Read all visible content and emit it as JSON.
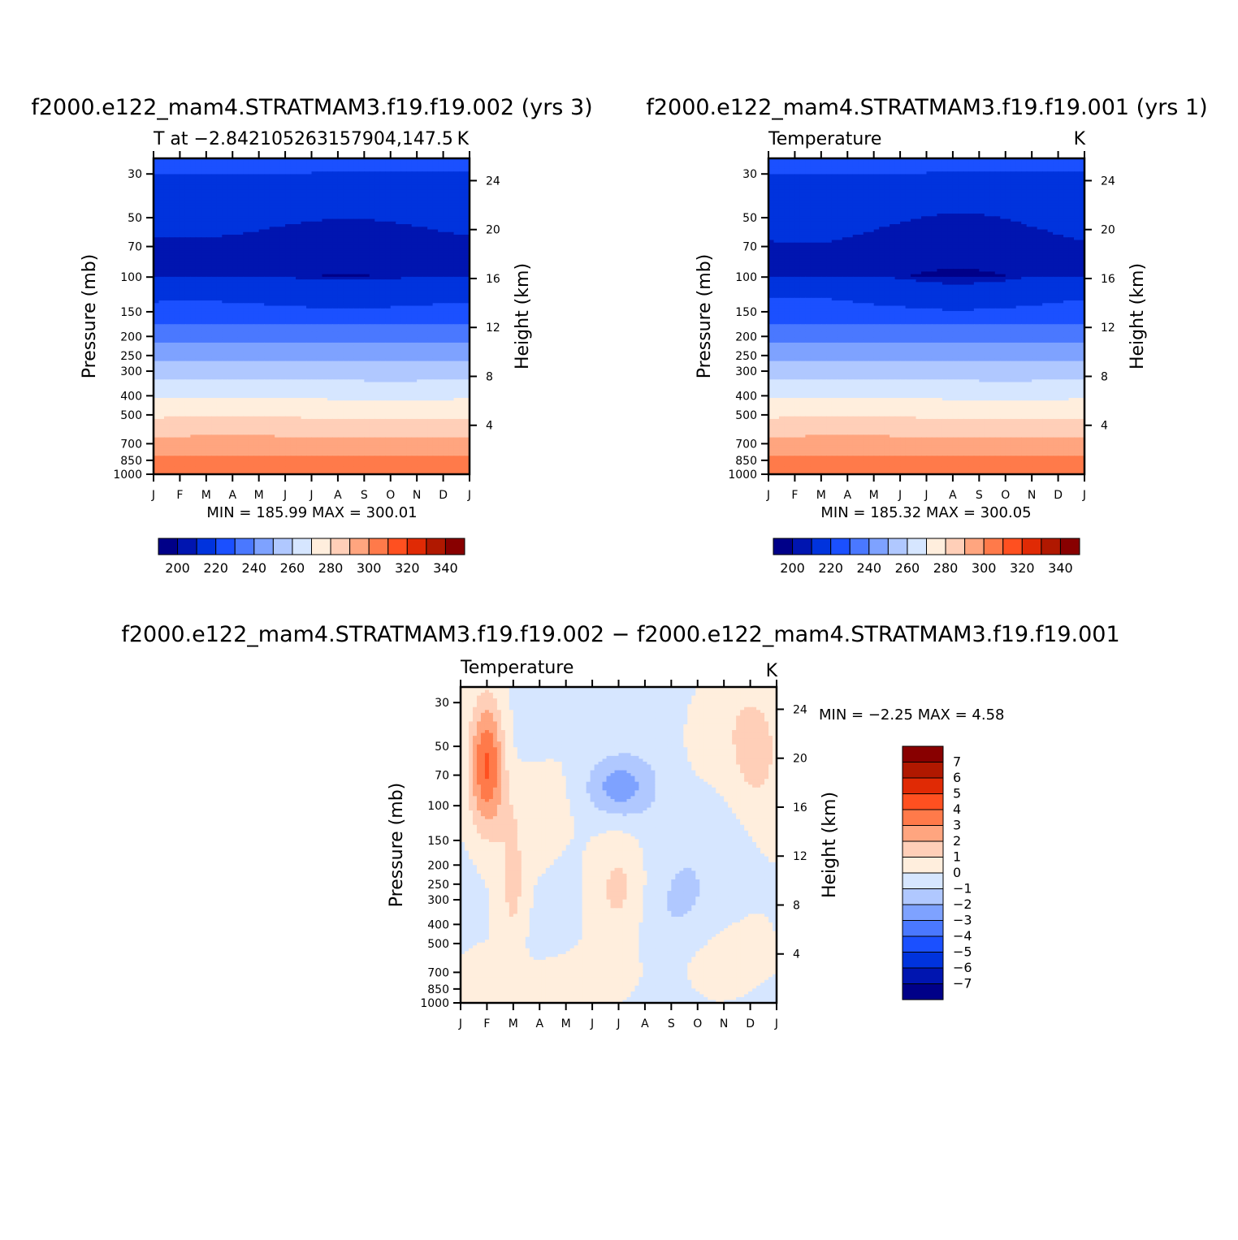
{
  "panels": [
    {
      "run_title": "f2000.e122_mam4.STRATMAM3.f19.f19.002  (yrs  3)",
      "left_title": "T  at  −2.842105263157904,147.5",
      "units": "K",
      "minmax": "MIN  =   185.99  MAX  =   300.01"
    },
    {
      "run_title": "f2000.e122_mam4.STRATMAM3.f19.f19.001  (yrs  1)",
      "left_title": "Temperature",
      "units": "K",
      "minmax": "MIN  =   185.32  MAX  =   300.05"
    },
    {
      "run_title": "f2000.e122_mam4.STRATMAM3.f19.f19.002  −  f2000.e122_mam4.STRATMAM3.f19.f19.001",
      "left_title": "Temperature",
      "units": "K",
      "minmax": "MIN  =   −2.25  MAX  =     4.58"
    }
  ],
  "chart_data": [
    {
      "type": "heatmap",
      "x": [
        "J",
        "F",
        "M",
        "A",
        "M",
        "J",
        "J",
        "A",
        "S",
        "O",
        "N",
        "D",
        "J"
      ],
      "y_pressure_mb": [
        1000,
        850,
        700,
        500,
        400,
        300,
        250,
        200,
        150,
        100,
        70,
        50,
        30
      ],
      "y_height_km": [
        4,
        8,
        12,
        16,
        20,
        24
      ],
      "ylabel": "Pressure  (mb)",
      "ylabel_right": "Height  (km)",
      "levels": [
        200,
        220,
        240,
        260,
        280,
        300,
        320,
        340
      ],
      "colorbar_labels": [
        "200",
        "220",
        "240",
        "260",
        "280",
        "300",
        "320",
        "340"
      ],
      "min": 185.99,
      "max": 300.01
    },
    {
      "type": "heatmap",
      "x": [
        "J",
        "F",
        "M",
        "A",
        "M",
        "J",
        "J",
        "A",
        "S",
        "O",
        "N",
        "D",
        "J"
      ],
      "y_pressure_mb": [
        1000,
        850,
        700,
        500,
        400,
        300,
        250,
        200,
        150,
        100,
        70,
        50,
        30
      ],
      "y_height_km": [
        4,
        8,
        12,
        16,
        20,
        24
      ],
      "ylabel": "Pressure  (mb)",
      "ylabel_right": "Height  (km)",
      "levels": [
        200,
        220,
        240,
        260,
        280,
        300,
        320,
        340
      ],
      "colorbar_labels": [
        "200",
        "220",
        "240",
        "260",
        "280",
        "300",
        "320",
        "340"
      ],
      "min": 185.32,
      "max": 300.05
    },
    {
      "type": "heatmap",
      "x": [
        "J",
        "F",
        "M",
        "A",
        "M",
        "J",
        "J",
        "A",
        "S",
        "O",
        "N",
        "D",
        "J"
      ],
      "y_pressure_mb": [
        1000,
        850,
        700,
        500,
        400,
        300,
        250,
        200,
        150,
        100,
        70,
        50,
        30
      ],
      "y_height_km": [
        4,
        8,
        12,
        16,
        20,
        24
      ],
      "ylabel": "Pressure  (mb)",
      "ylabel_right": "Height  (km)",
      "levels": [
        -7,
        -6,
        -5,
        -4,
        -3,
        -2,
        -1,
        0,
        1,
        2,
        3,
        4,
        5,
        6,
        7
      ],
      "colorbar_labels": [
        "7",
        "6",
        "5",
        "4",
        "3",
        "2",
        "1",
        "0",
        "−1",
        "−2",
        "−3",
        "−4",
        "−5",
        "−6",
        "−7"
      ],
      "min": -2.25,
      "max": 4.58
    }
  ],
  "colors": {
    "temp_scale": [
      "#000088",
      "#0015b0",
      "#0033dd",
      "#1b50ff",
      "#4a78ff",
      "#7ea2ff",
      "#b0c8ff",
      "#d6e6ff",
      "#ffeedd",
      "#ffcfb8",
      "#ffa57f",
      "#ff7a4a",
      "#ff5020",
      "#e02a05",
      "#b01800",
      "#880000"
    ],
    "diff_scale": [
      "#880000",
      "#b01800",
      "#e02a05",
      "#ff5020",
      "#ff7a4a",
      "#ffa57f",
      "#ffcfb8",
      "#ffeedd",
      "#d6e6ff",
      "#b0c8ff",
      "#7ea2ff",
      "#4a78ff",
      "#1b50ff",
      "#0033dd",
      "#0015b0",
      "#000088"
    ]
  }
}
